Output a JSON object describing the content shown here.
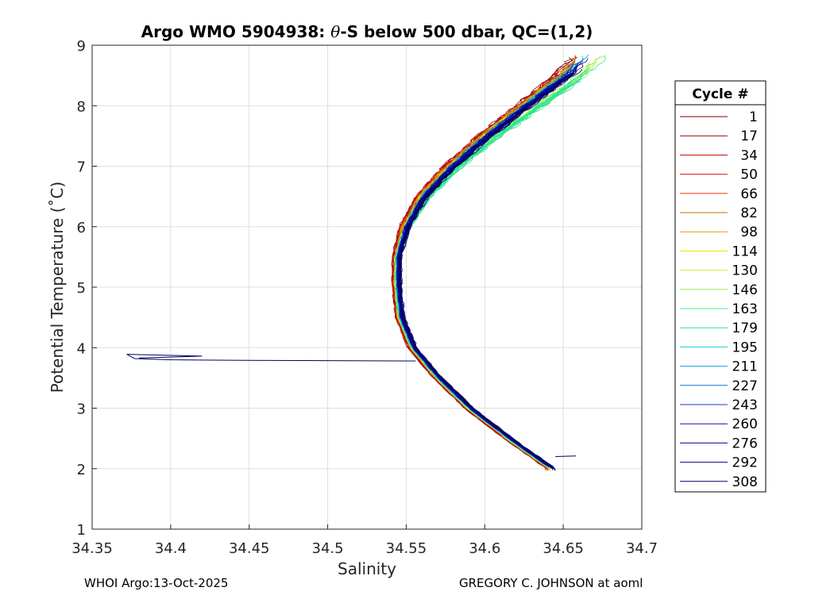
{
  "chart_data": {
    "type": "line",
    "title_prefix": "Argo WMO 5904938: ",
    "title_theta": "θ",
    "title_suffix": "-S below 500 dbar,  QC=(1,2)",
    "xlabel": "Salinity",
    "ylabel": "Potential Temperature (˚C)",
    "xlim": [
      34.35,
      34.7
    ],
    "ylim": [
      1,
      9
    ],
    "xticks": [
      "34.35",
      "34.4",
      "34.45",
      "34.5",
      "34.55",
      "34.6",
      "34.65",
      "34.7"
    ],
    "yticks": [
      "1",
      "2",
      "3",
      "4",
      "5",
      "6",
      "7",
      "8",
      "9"
    ],
    "grid": true,
    "legend_title": "Cycle #",
    "legend_position": "outside-right",
    "series": [
      {
        "name": "1",
        "color": "#7f0000"
      },
      {
        "name": "17",
        "color": "#a00000"
      },
      {
        "name": "34",
        "color": "#c00000"
      },
      {
        "name": "50",
        "color": "#e01010"
      },
      {
        "name": "66",
        "color": "#ff3010"
      },
      {
        "name": "82",
        "color": "#c07000"
      },
      {
        "name": "98",
        "color": "#e0a000"
      },
      {
        "name": "114",
        "color": "#f0e000"
      },
      {
        "name": "130",
        "color": "#d0f030"
      },
      {
        "name": "146",
        "color": "#90f060"
      },
      {
        "name": "163",
        "color": "#40f080"
      },
      {
        "name": "179",
        "color": "#20e0a0"
      },
      {
        "name": "195",
        "color": "#10d0d0"
      },
      {
        "name": "211",
        "color": "#10a0e0"
      },
      {
        "name": "227",
        "color": "#1070d0"
      },
      {
        "name": "243",
        "color": "#1040c0"
      },
      {
        "name": "260",
        "color": "#1010b0"
      },
      {
        "name": "276",
        "color": "#100090"
      },
      {
        "name": "292",
        "color": "#0a0078"
      },
      {
        "name": "308",
        "color": "#000060"
      }
    ],
    "envelope": [
      {
        "t": 2.0,
        "s": 34.642
      },
      {
        "t": 2.5,
        "s": 34.615
      },
      {
        "t": 3.0,
        "s": 34.59
      },
      {
        "t": 3.5,
        "s": 34.57
      },
      {
        "t": 4.0,
        "s": 34.554
      },
      {
        "t": 4.5,
        "s": 34.546
      },
      {
        "t": 5.0,
        "s": 34.544
      },
      {
        "t": 5.5,
        "s": 34.544
      },
      {
        "t": 6.0,
        "s": 34.549
      },
      {
        "t": 6.5,
        "s": 34.56
      },
      {
        "t": 7.0,
        "s": 34.578
      },
      {
        "t": 7.5,
        "s": 34.6
      },
      {
        "t": 8.0,
        "s": 34.625
      },
      {
        "t": 8.5,
        "s": 34.65
      },
      {
        "t": 8.9,
        "s": 34.665
      }
    ],
    "outlier": {
      "points": [
        {
          "s": 34.556,
          "t": 3.78
        },
        {
          "s": 34.45,
          "t": 3.79
        },
        {
          "s": 34.4,
          "t": 3.8
        },
        {
          "s": 34.377,
          "t": 3.82
        },
        {
          "s": 34.372,
          "t": 3.89
        },
        {
          "s": 34.42,
          "t": 3.86
        },
        {
          "s": 34.38,
          "t": 3.83
        }
      ],
      "color": "#000060"
    },
    "deep_stub": {
      "points": [
        {
          "s": 34.645,
          "t": 2.2
        },
        {
          "s": 34.658,
          "t": 2.21
        }
      ],
      "color": "#000060"
    }
  },
  "footer": {
    "left": "WHOI Argo:13-Oct-2025",
    "right": "GREGORY C. JOHNSON at aoml"
  }
}
